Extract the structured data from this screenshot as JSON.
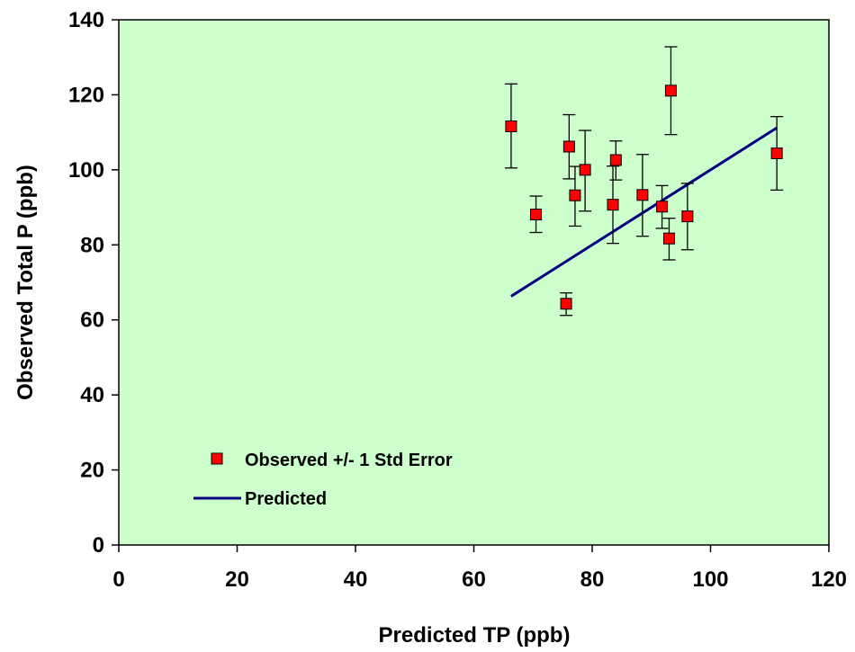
{
  "chart_data": {
    "type": "scatter",
    "xlabel": "Predicted TP (ppb)",
    "ylabel": "Observed Total P (ppb)",
    "xlim": [
      0,
      120
    ],
    "ylim": [
      0,
      140
    ],
    "x_ticks": [
      0,
      20,
      40,
      60,
      80,
      100,
      120
    ],
    "y_ticks": [
      0,
      20,
      40,
      60,
      80,
      100,
      120,
      140
    ],
    "grid": false,
    "plot_background": "#ccffcc",
    "legend": {
      "placement": "bottom-left",
      "entries": [
        "Observed +/- 1 Std Error",
        "Predicted"
      ]
    },
    "series": [
      {
        "name": "Observed +/- 1 Std Error",
        "kind": "points-with-error-bars",
        "marker_color": "#ff0000",
        "points": [
          {
            "x": 66.3,
            "y": 111.6,
            "err_low": 100.5,
            "err_high": 122.9
          },
          {
            "x": 70.5,
            "y": 88.1,
            "err_low": 83.3,
            "err_high": 93.0
          },
          {
            "x": 75.6,
            "y": 64.3,
            "err_low": 61.2,
            "err_high": 67.2
          },
          {
            "x": 76.1,
            "y": 106.2,
            "err_low": 97.6,
            "err_high": 114.7
          },
          {
            "x": 77.1,
            "y": 93.2,
            "err_low": 85.0,
            "err_high": 100.9
          },
          {
            "x": 78.8,
            "y": 100.0,
            "err_low": 89.0,
            "err_high": 110.5
          },
          {
            "x": 83.5,
            "y": 90.7,
            "err_low": 80.4,
            "err_high": 101.0
          },
          {
            "x": 84.0,
            "y": 102.6,
            "err_low": 97.3,
            "err_high": 107.7
          },
          {
            "x": 88.5,
            "y": 93.3,
            "err_low": 82.3,
            "err_high": 104.1
          },
          {
            "x": 91.8,
            "y": 90.2,
            "err_low": 84.4,
            "err_high": 95.8
          },
          {
            "x": 93.0,
            "y": 81.7,
            "err_low": 76.0,
            "err_high": 87.1
          },
          {
            "x": 93.3,
            "y": 121.1,
            "err_low": 109.4,
            "err_high": 132.8
          },
          {
            "x": 96.1,
            "y": 87.6,
            "err_low": 78.7,
            "err_high": 96.4
          },
          {
            "x": 111.2,
            "y": 104.4,
            "err_low": 94.6,
            "err_high": 114.2
          }
        ]
      },
      {
        "name": "Predicted",
        "kind": "line",
        "line_color": "#000080",
        "x": [
          66.3,
          111.2
        ],
        "y": [
          66.3,
          111.2
        ]
      }
    ]
  }
}
